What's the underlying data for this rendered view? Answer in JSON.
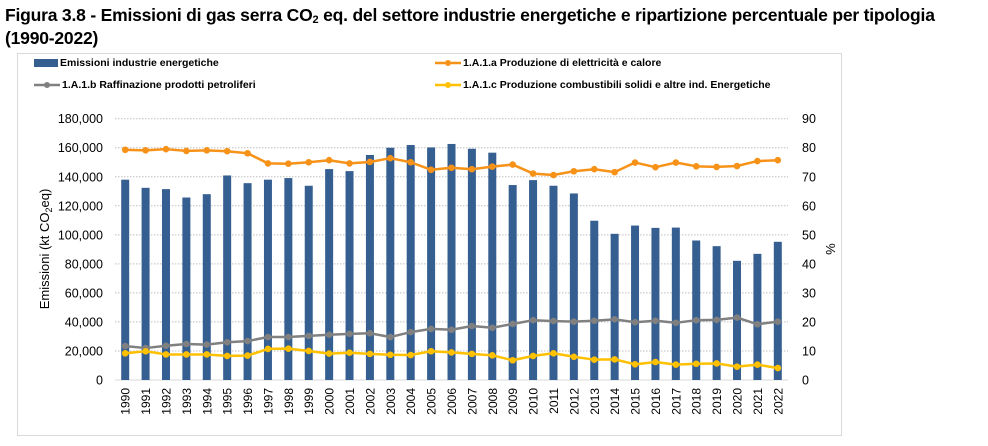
{
  "page": {
    "title_line1_pre": "Figura 3.8 - Emissioni di gas serra CO",
    "title_sub": "2",
    "title_line1_post": " eq. del settore industrie energetiche e ripartizione percentuale per tipologia",
    "title_line2": "(1990-2022)"
  },
  "colors": {
    "bars": "#365f91",
    "electricity": "#f79218",
    "refining": "#808080",
    "solid_fuels": "#ffc000",
    "grid": "#bfbfbf",
    "frame": "#d9d9d9"
  },
  "chart_data": {
    "type": "bar+line",
    "title": "Emissioni di gas serra CO2 eq. del settore industrie energetiche e ripartizione percentuale per tipologia (1990-2022)",
    "xlabel": "",
    "ylabel": "Emissioni (kt CO2eq)",
    "ylabel_parts": {
      "pre": "Emissioni (kt CO",
      "sub": "2",
      "post": "eq)"
    },
    "y2label": "%",
    "ylim": [
      0,
      180000
    ],
    "y2lim": [
      0,
      90
    ],
    "yticks": [
      "0",
      "20,000",
      "40,000",
      "60,000",
      "80,000",
      "100,000",
      "120,000",
      "140,000",
      "160,000",
      "180,000"
    ],
    "y2ticks": [
      "0",
      "10",
      "20",
      "30",
      "40",
      "50",
      "60",
      "70",
      "80",
      "90"
    ],
    "grid": true,
    "legend_position": "top",
    "categories": [
      "1990",
      "1991",
      "1992",
      "1993",
      "1994",
      "1995",
      "1996",
      "1997",
      "1998",
      "1999",
      "2000",
      "2001",
      "2002",
      "2003",
      "2004",
      "2005",
      "2006",
      "2007",
      "2008",
      "2009",
      "2010",
      "2011",
      "2012",
      "2013",
      "2014",
      "2015",
      "2016",
      "2017",
      "2018",
      "2019",
      "2020",
      "2021",
      "2022"
    ],
    "series": [
      {
        "name": "Emissioni industrie energetiche",
        "type": "bar",
        "axis": "left",
        "values": [
          138000,
          132400,
          131500,
          125700,
          128000,
          140900,
          135600,
          138000,
          139100,
          133800,
          145300,
          143900,
          155000,
          160000,
          161900,
          160200,
          162600,
          159300,
          156600,
          134300,
          137700,
          133800,
          128500,
          109700,
          100700,
          106400,
          104800,
          105000,
          96100,
          92200,
          82100,
          86900,
          95200
        ]
      },
      {
        "name": "1.A.1.a Produzione di elettricità e calore",
        "type": "line",
        "axis": "right",
        "values": [
          79.3,
          79.1,
          79.5,
          78.9,
          79.1,
          78.8,
          78.1,
          74.6,
          74.5,
          75.0,
          75.7,
          74.6,
          75.1,
          76.4,
          75.0,
          72.4,
          73.1,
          72.6,
          73.5,
          74.2,
          71.1,
          70.6,
          71.9,
          72.6,
          71.6,
          74.9,
          73.3,
          74.9,
          73.6,
          73.4,
          73.7,
          75.4,
          75.7
        ]
      },
      {
        "name": "1.A.1.b Raffinazione prodotti petroliferi",
        "type": "line",
        "axis": "right",
        "values": [
          11.7,
          11.0,
          11.8,
          12.4,
          12.2,
          13.0,
          13.4,
          14.8,
          14.8,
          15.2,
          15.6,
          15.9,
          16.1,
          14.8,
          16.5,
          17.6,
          17.3,
          18.6,
          18.0,
          19.3,
          20.6,
          20.3,
          20.1,
          20.4,
          20.9,
          19.9,
          20.4,
          19.7,
          20.6,
          20.7,
          21.5,
          19.2,
          20.1
        ]
      },
      {
        "name": "1.A.1.c Produzione combustibili solidi e altre ind. Energetiche",
        "type": "line",
        "axis": "right",
        "values": [
          9.2,
          9.9,
          8.8,
          8.8,
          8.8,
          8.3,
          8.4,
          10.7,
          10.8,
          10.0,
          9.1,
          9.4,
          9.0,
          8.7,
          8.6,
          9.9,
          9.5,
          9.0,
          8.5,
          6.8,
          8.3,
          9.2,
          8.0,
          7.0,
          7.1,
          5.4,
          6.2,
          5.3,
          5.6,
          5.7,
          4.6,
          5.3,
          4.1
        ]
      }
    ]
  }
}
